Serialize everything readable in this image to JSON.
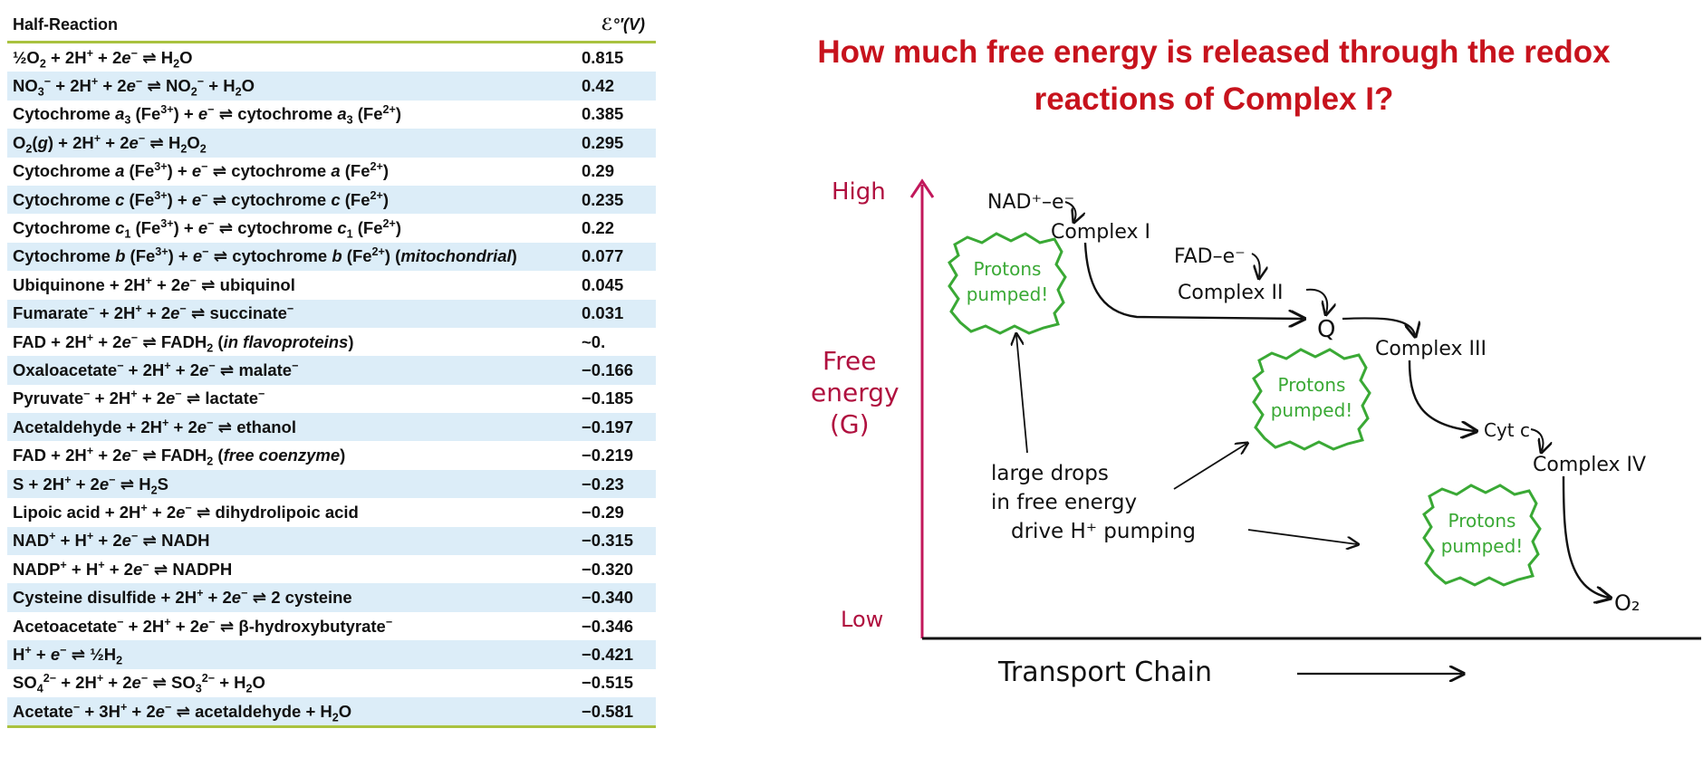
{
  "table": {
    "header_reaction": "Half-Reaction",
    "header_potential": "ℰ°′(V)",
    "rows": [
      {
        "eq": "½O<sub>2</sub> + 2H<sup>+</sup> + 2<i>e</i><sup>−</sup> ⇌ H<sub>2</sub>O",
        "value": "0.815"
      },
      {
        "eq": "NO<sub>3</sub><sup>−</sup> + 2H<sup>+</sup> + 2<i>e</i><sup>−</sup> ⇌ NO<sub>2</sub><sup>−</sup> + H<sub>2</sub>O",
        "value": "0.42"
      },
      {
        "eq": "Cytochrome <i>a</i><sub>3</sub> (Fe<sup>3+</sup>) + <i>e</i><sup>−</sup> ⇌ cytochrome <i>a</i><sub>3</sub> (Fe<sup>2+</sup>)",
        "value": "0.385"
      },
      {
        "eq": "O<sub>2</sub>(<i>g</i>) + 2H<sup>+</sup> + 2<i>e</i><sup>−</sup> ⇌ H<sub>2</sub>O<sub>2</sub>",
        "value": "0.295"
      },
      {
        "eq": "Cytochrome <i>a</i> (Fe<sup>3+</sup>) + <i>e</i><sup>−</sup> ⇌ cytochrome <i>a</i> (Fe<sup>2+</sup>)",
        "value": "0.29"
      },
      {
        "eq": "Cytochrome <i>c</i> (Fe<sup>3+</sup>) + <i>e</i><sup>−</sup> ⇌ cytochrome <i>c</i> (Fe<sup>2+</sup>)",
        "value": "0.235"
      },
      {
        "eq": "Cytochrome <i>c</i><sub>1</sub> (Fe<sup>3+</sup>) + <i>e</i><sup>−</sup> ⇌ cytochrome <i>c</i><sub>1</sub> (Fe<sup>2+</sup>)",
        "value": "0.22"
      },
      {
        "eq": "Cytochrome <i>b</i> (Fe<sup>3+</sup>) + <i>e</i><sup>−</sup> ⇌ cytochrome <i>b</i> (Fe<sup>2+</sup>) (<i>mitochondrial</i>)",
        "value": "0.077"
      },
      {
        "eq": "Ubiquinone + 2H<sup>+</sup> + 2<i>e</i><sup>−</sup> ⇌ ubiquinol",
        "value": "0.045"
      },
      {
        "eq": "Fumarate<sup>−</sup> + 2H<sup>+</sup> + 2<i>e</i><sup>−</sup> ⇌ succinate<sup>−</sup>",
        "value": "0.031"
      },
      {
        "eq": "FAD + 2H<sup>+</sup> + 2<i>e</i><sup>−</sup> ⇌ FADH<sub>2</sub> (<i>in flavoproteins</i>)",
        "value": "~0."
      },
      {
        "eq": "Oxaloacetate<sup>−</sup> + 2H<sup>+</sup> + 2<i>e</i><sup>−</sup> ⇌ malate<sup>−</sup>",
        "value": "−0.166"
      },
      {
        "eq": "Pyruvate<sup>−</sup> + 2H<sup>+</sup> + 2<i>e</i><sup>−</sup> ⇌ lactate<sup>−</sup>",
        "value": "−0.185"
      },
      {
        "eq": "Acetaldehyde + 2H<sup>+</sup> + 2<i>e</i><sup>−</sup> ⇌ ethanol",
        "value": "−0.197"
      },
      {
        "eq": "FAD + 2H<sup>+</sup> + 2<i>e</i><sup>−</sup> ⇌ FADH<sub>2</sub> (<i>free coenzyme</i>)",
        "value": "−0.219"
      },
      {
        "eq": "S + 2H<sup>+</sup> + 2<i>e</i><sup>−</sup> ⇌ H<sub>2</sub>S",
        "value": "−0.23"
      },
      {
        "eq": "Lipoic acid + 2H<sup>+</sup> + 2<i>e</i><sup>−</sup> ⇌ dihydrolipoic acid",
        "value": "−0.29"
      },
      {
        "eq": "NAD<sup>+</sup> + H<sup>+</sup> + 2<i>e</i><sup>−</sup> ⇌ NADH",
        "value": "−0.315"
      },
      {
        "eq": "NADP<sup>+</sup> + H<sup>+</sup> + 2<i>e</i><sup>−</sup> ⇌ NADPH",
        "value": "−0.320"
      },
      {
        "eq": "Cysteine disulfide + 2H<sup>+</sup> + 2<i>e</i><sup>−</sup> ⇌ 2 cysteine",
        "value": "−0.340"
      },
      {
        "eq": "Acetoacetate<sup>−</sup> + 2H<sup>+</sup> + 2<i>e</i><sup>−</sup> ⇌ β-hydroxybutyrate<sup>−</sup>",
        "value": "−0.346"
      },
      {
        "eq": "H<sup>+</sup> + <i>e</i><sup>−</sup> ⇌ ½H<sub>2</sub>",
        "value": "−0.421"
      },
      {
        "eq": "SO<sub>4</sub><sup>2−</sup> + 2H<sup>+</sup> + 2<i>e</i><sup>−</sup> ⇌ SO<sub>3</sub><sup>2−</sup> + H<sub>2</sub>O",
        "value": "−0.515"
      },
      {
        "eq": "Acetate<sup>−</sup> + 3H<sup>+</sup> + 2<i>e</i><sup>−</sup> ⇌ acetaldehyde + H<sub>2</sub>O",
        "value": "−0.581"
      }
    ]
  },
  "question": "How much free energy is released through the redox reactions of Complex I?",
  "diagram": {
    "axis_high": "High",
    "axis_low": "Low",
    "axis_y_label_1": "Free",
    "axis_y_label_2": "energy",
    "axis_y_label_3": "(G)",
    "axis_x_label": "Transport Chain",
    "nad_label": "NAD⁺–e⁻",
    "fad_label": "FAD–e⁻",
    "complex1": "Complex I",
    "complex2": "Complex II",
    "q": "Q",
    "complex3": "Complex III",
    "cytc": "Cyt c",
    "complex4": "Complex IV",
    "o2": "O₂",
    "protons_line1": "Protons",
    "protons_line2": "pumped!",
    "note_line1": "large drops",
    "note_line2": "in free energy",
    "note_line3": "drive H⁺ pumping",
    "colors": {
      "axis": "#c2185b",
      "axis_text": "#b0103f",
      "burst": "#3aa935",
      "question": "#c7131d",
      "table_rule": "#a9c23f",
      "row_alt": "#dcedf8"
    }
  }
}
